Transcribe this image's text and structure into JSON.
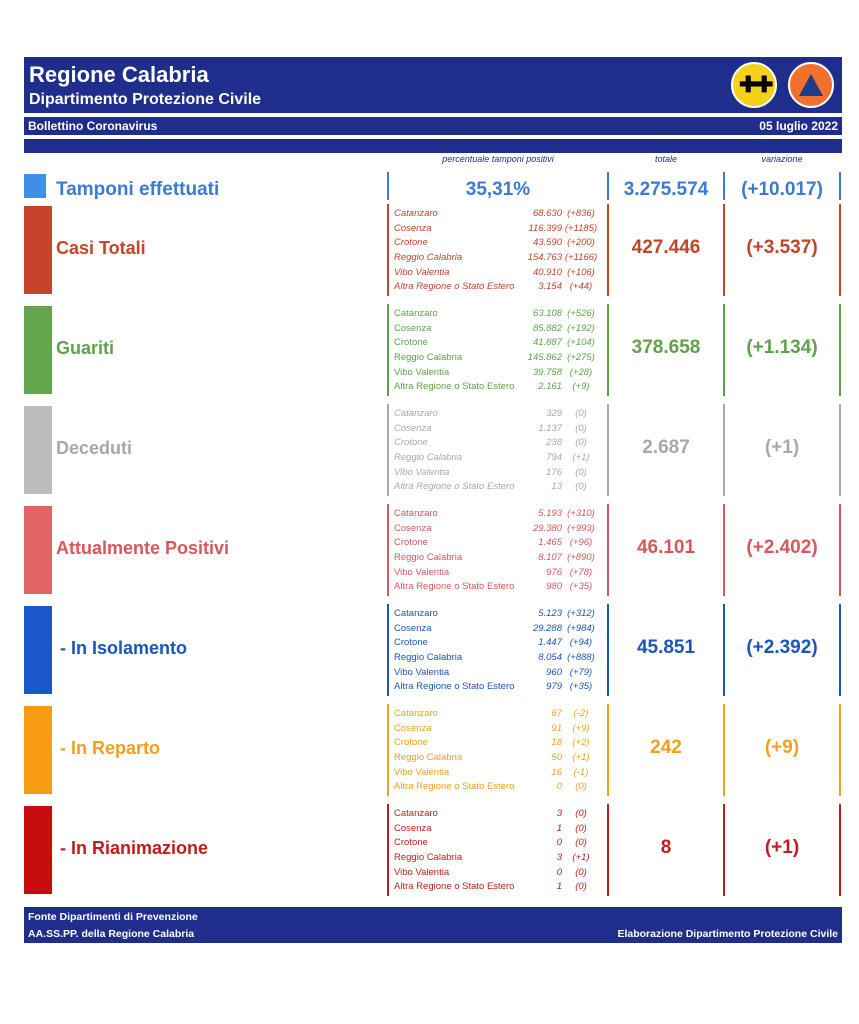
{
  "header": {
    "title": "Regione Calabria",
    "subtitle": "Dipartimento Protezione Civile",
    "bulletin": "Bollettino Coronavirus",
    "date": "05 luglio 2022",
    "colors": {
      "banner": "#1f2e8b"
    },
    "logos": [
      "calabria-crest-icon",
      "protezione-civile-logo"
    ]
  },
  "columns": {
    "pct_label": "percentuale tamponi positivi",
    "total_label": "totale",
    "change_label": "variazione"
  },
  "tamponi": {
    "label": "Tamponi effettuati",
    "positivity": "35,31%",
    "total": "3.275.574",
    "change": "(+10.017)",
    "color": "#3b7bd4"
  },
  "sections": [
    {
      "key": "casi",
      "label": "Casi Totali",
      "color": "#c0452a",
      "bar": "#c7432c",
      "total": "427.446",
      "change": "(+3.537)",
      "rows": [
        {
          "name": "Catanzaro",
          "value": "68.630",
          "delta": "(+836)"
        },
        {
          "name": "Cosenza",
          "value": "116.399",
          "delta": "(+1185)"
        },
        {
          "name": "Crotone",
          "value": "43.590",
          "delta": "(+200)"
        },
        {
          "name": "Reggio Calabria",
          "value": "154.763",
          "delta": "(+1166)"
        },
        {
          "name": "Vibo Valentia",
          "value": "40.910",
          "delta": "(+106)"
        },
        {
          "name": "Altra Regione o Stato Estero",
          "value": "3.154",
          "delta": "(+44)"
        }
      ]
    },
    {
      "key": "guariti",
      "label": "Guariti",
      "color": "#5fa24a",
      "bar": "#63a64c",
      "total": "378.658",
      "change": "(+1.134)",
      "rows": [
        {
          "name": "Catanzaro",
          "value": "63.108",
          "delta": "(+526)"
        },
        {
          "name": "Cosenza",
          "value": "85.882",
          "delta": "(+192)"
        },
        {
          "name": "Crotone",
          "value": "41.887",
          "delta": "(+104)"
        },
        {
          "name": "Reggio Calabria",
          "value": "145.862",
          "delta": "(+275)"
        },
        {
          "name": "Vibo Valentia",
          "value": "39.758",
          "delta": "(+28)"
        },
        {
          "name": "Altra Regione o Stato Estero",
          "value": "2.161",
          "delta": "(+9)"
        }
      ]
    },
    {
      "key": "deceduti",
      "label": "Deceduti",
      "color": "#a8a8a8",
      "bar": "#bdbdbd",
      "total": "2.687",
      "change": "(+1)",
      "rows": [
        {
          "name": "Catanzaro",
          "value": "329",
          "delta": "(0)"
        },
        {
          "name": "Cosenza",
          "value": "1.137",
          "delta": "(0)"
        },
        {
          "name": "Crotone",
          "value": "238",
          "delta": "(0)"
        },
        {
          "name": "Reggio Calabria",
          "value": "794",
          "delta": "(+1)"
        },
        {
          "name": "Vibo Valentia",
          "value": "176",
          "delta": "(0)"
        },
        {
          "name": "Altra Regione o Stato Estero",
          "value": "13",
          "delta": "(0)"
        }
      ]
    },
    {
      "key": "attuali",
      "label": "Attualmente Positivi",
      "color": "#d9575a",
      "bar": "#e06466",
      "total": "46.101",
      "change": "(+2.402)",
      "rows": [
        {
          "name": "Catanzaro",
          "value": "5.193",
          "delta": "(+310)"
        },
        {
          "name": "Cosenza",
          "value": "29.380",
          "delta": "(+993)"
        },
        {
          "name": "Crotone",
          "value": "1.465",
          "delta": "(+96)"
        },
        {
          "name": "Reggio Calabria",
          "value": "8.107",
          "delta": "(+890)"
        },
        {
          "name": "Vibo Valentia",
          "value": "976",
          "delta": "(+78)"
        },
        {
          "name": "Altra Regione o Stato Estero",
          "value": "980",
          "delta": "(+35)"
        }
      ]
    },
    {
      "key": "isolamento",
      "label": "- In Isolamento",
      "color": "#1b55b8",
      "bar": "#1a57c8",
      "total": "45.851",
      "change": "(+2.392)",
      "rows": [
        {
          "name": "Catanzaro",
          "value": "5.123",
          "delta": "(+312)"
        },
        {
          "name": "Cosenza",
          "value": "29.288",
          "delta": "(+984)"
        },
        {
          "name": "Crotone",
          "value": "1.447",
          "delta": "(+94)"
        },
        {
          "name": "Reggio Calabria",
          "value": "8.054",
          "delta": "(+888)"
        },
        {
          "name": "Vibo Valentia",
          "value": "960",
          "delta": "(+79)"
        },
        {
          "name": "Altra Regione o Stato Estero",
          "value": "979",
          "delta": "(+35)"
        }
      ]
    },
    {
      "key": "reparto",
      "label": "- In Reparto",
      "color": "#f0a020",
      "bar": "#f79b10",
      "total": "242",
      "change": "(+9)",
      "rows": [
        {
          "name": "Catanzaro",
          "value": "67",
          "delta": "(-2)"
        },
        {
          "name": "Cosenza",
          "value": "91",
          "delta": "(+9)"
        },
        {
          "name": "Crotone",
          "value": "18",
          "delta": "(+2)"
        },
        {
          "name": "Reggio Calabria",
          "value": "50",
          "delta": "(+1)"
        },
        {
          "name": "Vibo Valentia",
          "value": "16",
          "delta": "(-1)"
        },
        {
          "name": "Altra Regione o Stato Estero",
          "value": "0",
          "delta": "(0)"
        }
      ]
    },
    {
      "key": "rianimazione",
      "label": "- In Rianimazione",
      "color": "#c01c1c",
      "bar": "#c80d0d",
      "total": "8",
      "change": "(+1)",
      "rows": [
        {
          "name": "Catanzaro",
          "value": "3",
          "delta": "(0)"
        },
        {
          "name": "Cosenza",
          "value": "1",
          "delta": "(0)"
        },
        {
          "name": "Crotone",
          "value": "0",
          "delta": "(0)"
        },
        {
          "name": "Reggio Calabria",
          "value": "3",
          "delta": "(+1)"
        },
        {
          "name": "Vibo Valentia",
          "value": "0",
          "delta": "(0)"
        },
        {
          "name": "Altra Regione o Stato Estero",
          "value": "1",
          "delta": "(0)"
        }
      ]
    }
  ],
  "footer": {
    "source_line1": "Fonte Dipartimenti di Prevenzione",
    "source_line2": "AA.SS.PP.  della Regione Calabria",
    "credit": "Elaborazione Dipartimento Protezione Civile"
  }
}
